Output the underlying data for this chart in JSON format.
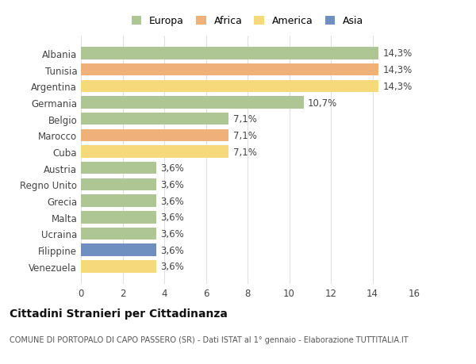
{
  "categories": [
    "Venezuela",
    "Filippine",
    "Ucraina",
    "Malta",
    "Grecia",
    "Regno Unito",
    "Austria",
    "Cuba",
    "Marocco",
    "Belgio",
    "Germania",
    "Argentina",
    "Tunisia",
    "Albania"
  ],
  "values": [
    3.6,
    3.6,
    3.6,
    3.6,
    3.6,
    3.6,
    3.6,
    7.1,
    7.1,
    7.1,
    10.7,
    14.3,
    14.3,
    14.3
  ],
  "labels": [
    "3,6%",
    "3,6%",
    "3,6%",
    "3,6%",
    "3,6%",
    "3,6%",
    "3,6%",
    "7,1%",
    "7,1%",
    "7,1%",
    "10,7%",
    "14,3%",
    "14,3%",
    "14,3%"
  ],
  "colors": [
    "#f5d97a",
    "#6e8fbf",
    "#adc693",
    "#adc693",
    "#adc693",
    "#adc693",
    "#adc693",
    "#f5d97a",
    "#f0b07a",
    "#adc693",
    "#adc693",
    "#f5d97a",
    "#f0b07a",
    "#adc693"
  ],
  "legend_labels": [
    "Europa",
    "Africa",
    "America",
    "Asia"
  ],
  "legend_colors": [
    "#adc693",
    "#f0b07a",
    "#f5d97a",
    "#6e8fbf"
  ],
  "title": "Cittadini Stranieri per Cittadinanza",
  "subtitle": "COMUNE DI PORTOPALO DI CAPO PASSERO (SR) - Dati ISTAT al 1° gennaio - Elaborazione TUTTITALIA.IT",
  "xlim": [
    0,
    16
  ],
  "xticks": [
    0,
    2,
    4,
    6,
    8,
    10,
    12,
    14,
    16
  ],
  "background_color": "#ffffff",
  "grid_color": "#e0e0e0",
  "bar_height": 0.75,
  "label_fontsize": 8.5,
  "tick_fontsize": 8.5,
  "title_fontsize": 10,
  "subtitle_fontsize": 7
}
